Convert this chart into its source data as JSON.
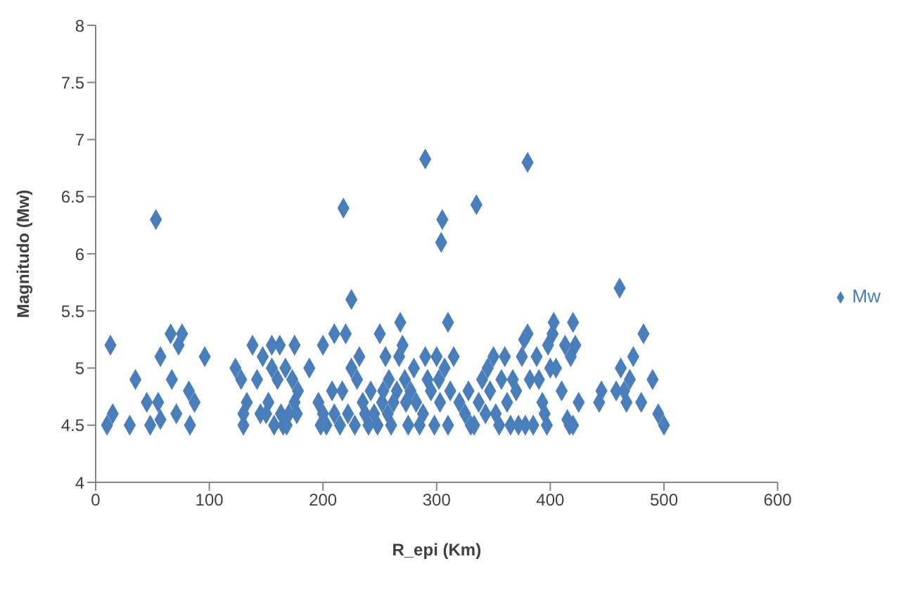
{
  "chart_data": {
    "type": "scatter",
    "xlabel": "R_epi (Km)",
    "ylabel": "Magnitudo (Mw)",
    "xlim": [
      0,
      600
    ],
    "xticks": [
      0,
      100,
      200,
      300,
      400,
      500,
      600
    ],
    "ylim": [
      4,
      8
    ],
    "yticks": [
      4,
      4.5,
      5,
      5.5,
      6,
      6.5,
      7,
      7.5,
      8
    ],
    "grid": false,
    "legend": "right",
    "marker": "diamond",
    "series": [
      {
        "name": "Mw",
        "color": "#4a7ebb",
        "x": [
          10,
          15,
          13,
          30,
          35,
          45,
          48,
          55,
          57,
          57,
          53,
          66,
          67,
          71,
          73,
          76,
          82,
          83,
          87,
          96,
          123,
          128,
          130,
          130,
          133,
          138,
          142,
          145,
          147,
          150,
          152,
          155,
          155,
          157,
          160,
          162,
          163,
          165,
          167,
          168,
          170,
          173,
          175,
          175,
          177,
          178,
          188,
          196,
          198,
          200,
          200,
          203,
          208,
          210,
          210,
          215,
          217,
          218,
          220,
          222,
          225,
          225,
          228,
          230,
          232,
          235,
          237,
          240,
          242,
          245,
          248,
          250,
          252,
          253,
          255,
          257,
          258,
          260,
          262,
          265,
          267,
          268,
          270,
          272,
          273,
          275,
          277,
          280,
          282,
          285,
          288,
          290,
          290,
          292,
          295,
          298,
          300,
          302,
          303,
          304,
          305,
          307,
          310,
          310,
          312,
          315,
          320,
          325,
          328,
          330,
          333,
          335,
          337,
          340,
          343,
          345,
          347,
          350,
          352,
          355,
          357,
          360,
          362,
          365,
          367,
          370,
          372,
          375,
          377,
          378,
          380,
          380,
          382,
          385,
          388,
          390,
          393,
          395,
          397,
          398,
          400,
          402,
          403,
          405,
          410,
          413,
          415,
          417,
          418,
          420,
          420,
          422,
          425,
          443,
          445,
          458,
          461,
          462,
          465,
          467,
          470,
          473,
          480,
          482,
          490,
          495,
          500
        ],
        "values": [
          4.5,
          4.6,
          5.2,
          4.5,
          4.9,
          4.7,
          4.5,
          4.7,
          4.55,
          5.1,
          6.3,
          5.3,
          4.9,
          4.6,
          5.2,
          5.3,
          4.8,
          4.5,
          4.7,
          5.1,
          5.0,
          4.9,
          4.6,
          4.5,
          4.7,
          5.2,
          4.9,
          4.6,
          5.1,
          4.6,
          4.7,
          5.2,
          5.0,
          4.5,
          4.9,
          5.2,
          4.6,
          4.5,
          5.0,
          4.5,
          4.6,
          4.9,
          5.2,
          4.7,
          4.6,
          4.8,
          5.0,
          4.7,
          4.5,
          5.2,
          4.6,
          4.5,
          4.8,
          4.6,
          5.3,
          4.5,
          4.8,
          6.4,
          5.3,
          4.6,
          5.6,
          5.0,
          4.5,
          4.9,
          5.1,
          4.7,
          4.6,
          4.5,
          4.8,
          4.6,
          4.5,
          5.3,
          4.7,
          4.8,
          5.1,
          4.6,
          4.9,
          4.5,
          4.7,
          4.8,
          5.1,
          5.4,
          5.2,
          4.9,
          4.7,
          4.5,
          4.8,
          5.0,
          4.7,
          4.5,
          4.6,
          6.83,
          5.1,
          4.9,
          4.8,
          4.5,
          5.1,
          4.9,
          4.7,
          6.1,
          6.3,
          5.0,
          5.4,
          4.5,
          4.8,
          5.1,
          4.7,
          4.6,
          4.8,
          4.5,
          4.5,
          6.43,
          4.7,
          4.9,
          4.6,
          5.0,
          4.8,
          5.1,
          4.6,
          4.5,
          4.9,
          5.1,
          4.7,
          4.5,
          4.9,
          4.8,
          4.5,
          5.1,
          5.25,
          4.5,
          5.3,
          6.8,
          4.9,
          4.5,
          5.1,
          4.9,
          4.7,
          4.6,
          4.5,
          5.2,
          5.0,
          5.3,
          5.4,
          5.0,
          4.8,
          5.2,
          4.55,
          4.5,
          5.1,
          5.4,
          4.5,
          5.2,
          4.7,
          4.7,
          4.8,
          4.8,
          5.7,
          5.0,
          4.8,
          4.7,
          4.9,
          5.1,
          4.7,
          5.3,
          4.9,
          4.6,
          4.5
        ]
      }
    ]
  }
}
